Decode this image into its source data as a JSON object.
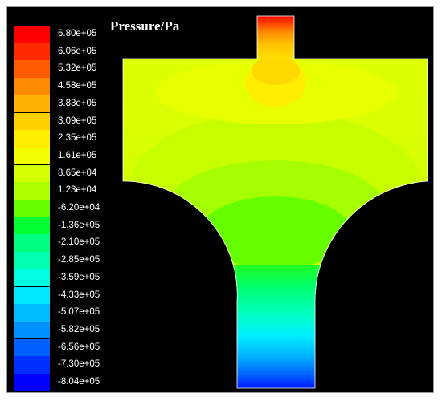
{
  "chart_data": {
    "type": "heatmap",
    "title": "Pressure/Pa",
    "colorbar": {
      "tick_labels": [
        "6.80e+05",
        "6.06e+05",
        "5.32e+05",
        "4.58e+05",
        "3.83e+05",
        "3.09e+05",
        "2.35e+05",
        "1.61e+05",
        "8.65e+04",
        "1.23e+04",
        "-6.20e+04",
        "-1.36e+05",
        "-2.10e+05",
        "-2.85e+05",
        "-3.59e+05",
        "-4.33e+05",
        "-5.07e+05",
        "-5.82e+05",
        "-6.56e+05",
        "-7.30e+05",
        "-8.04e+05"
      ],
      "values": [
        680000,
        606000,
        532000,
        458000,
        383000,
        309000,
        235000,
        161000,
        86500,
        12300,
        -62000,
        -136000,
        -210000,
        -285000,
        -359000,
        -433000,
        -507000,
        -582000,
        -656000,
        -730000,
        -804000
      ],
      "colors": [
        "#ff0000",
        "#ff2a00",
        "#ff5a00",
        "#ff8c00",
        "#ffb000",
        "#ffd000",
        "#ffee00",
        "#f2ff00",
        "#d4ff00",
        "#b0ff00",
        "#66ff00",
        "#00ff30",
        "#00ff80",
        "#00ffb0",
        "#00ffe0",
        "#00e8ff",
        "#00bbff",
        "#0090ff",
        "#0060ff",
        "#0030ff",
        "#0000ff"
      ],
      "min": -804000,
      "max": 680000,
      "placement": "left"
    }
  }
}
